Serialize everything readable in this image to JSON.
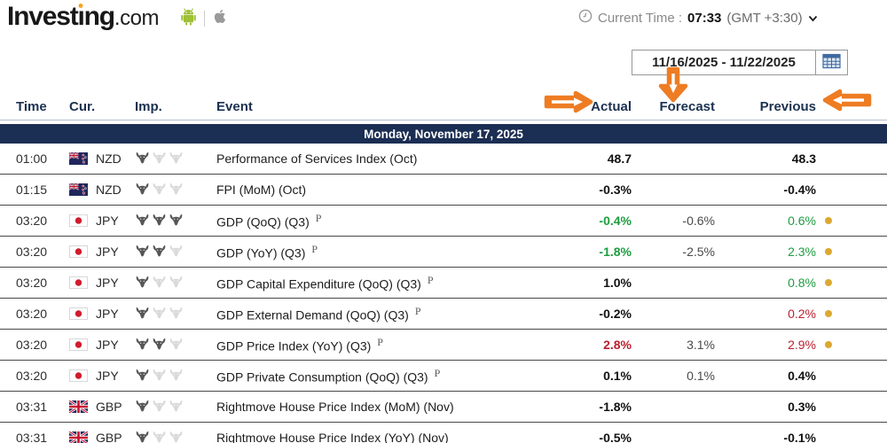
{
  "header": {
    "logo": {
      "part1": "Invest",
      "part2": "ı",
      "part3": "ng",
      "suffix": ".com"
    },
    "current_time": {
      "label": "Current Time :",
      "time": "07:33",
      "timezone": "(GMT +3:30)"
    },
    "date_range": "11/16/2025 - 11/22/2025"
  },
  "icons": {
    "android": "android-icon",
    "apple": "apple-icon",
    "clock": "clock-icon",
    "chevron": "chevron-down-icon",
    "calendar": "calendar-icon",
    "bull": "importance-bull-icon",
    "revised": "revised-dot",
    "arrows": [
      "annotation-arrow-actual",
      "annotation-arrow-forecast",
      "annotation-arrow-previous"
    ]
  },
  "colors": {
    "accent_orange": "#ee7c23",
    "navy_bar": "#1b2e53",
    "green": "#1e9c3f",
    "red": "#bb1f2e",
    "gold_dot": "#dca832"
  },
  "table": {
    "columns": {
      "time": "Time",
      "cur": "Cur.",
      "imp": "Imp.",
      "event": "Event",
      "actual": "Actual",
      "forecast": "Forecast",
      "previous": "Previous"
    },
    "date_header": "Monday, November 17, 2025",
    "prelim_mark": "P",
    "rows": [
      {
        "time": "01:00",
        "currency": "NZD",
        "flag": "nzd",
        "importance": 1,
        "event": "Performance of Services Index (Oct)",
        "prelim": false,
        "actual": "48.7",
        "actual_color": "black",
        "forecast": "",
        "previous": "48.3",
        "previous_color": "black",
        "revised_dot": false
      },
      {
        "time": "01:15",
        "currency": "NZD",
        "flag": "nzd",
        "importance": 1,
        "event": "FPI (MoM) (Oct)",
        "prelim": false,
        "actual": "-0.3%",
        "actual_color": "black",
        "forecast": "",
        "previous": "-0.4%",
        "previous_color": "black",
        "revised_dot": false
      },
      {
        "time": "03:20",
        "currency": "JPY",
        "flag": "jpy",
        "importance": 3,
        "event": "GDP (QoQ) (Q3)",
        "prelim": true,
        "actual": "-0.4%",
        "actual_color": "green",
        "forecast": "-0.6%",
        "previous": "0.6%",
        "previous_color": "green",
        "revised_dot": true
      },
      {
        "time": "03:20",
        "currency": "JPY",
        "flag": "jpy",
        "importance": 2,
        "event": "GDP (YoY) (Q3)",
        "prelim": true,
        "actual": "-1.8%",
        "actual_color": "green",
        "forecast": "-2.5%",
        "previous": "2.3%",
        "previous_color": "green",
        "revised_dot": true
      },
      {
        "time": "03:20",
        "currency": "JPY",
        "flag": "jpy",
        "importance": 1,
        "event": "GDP Capital Expenditure (QoQ) (Q3)",
        "prelim": true,
        "actual": "1.0%",
        "actual_color": "black",
        "forecast": "",
        "previous": "0.8%",
        "previous_color": "green",
        "revised_dot": true
      },
      {
        "time": "03:20",
        "currency": "JPY",
        "flag": "jpy",
        "importance": 1,
        "event": "GDP External Demand (QoQ) (Q3)",
        "prelim": true,
        "actual": "-0.2%",
        "actual_color": "black",
        "forecast": "",
        "previous": "0.2%",
        "previous_color": "red",
        "revised_dot": true
      },
      {
        "time": "03:20",
        "currency": "JPY",
        "flag": "jpy",
        "importance": 2,
        "event": "GDP Price Index (YoY) (Q3)",
        "prelim": true,
        "actual": "2.8%",
        "actual_color": "red",
        "forecast": "3.1%",
        "previous": "2.9%",
        "previous_color": "red",
        "revised_dot": true
      },
      {
        "time": "03:20",
        "currency": "JPY",
        "flag": "jpy",
        "importance": 1,
        "event": "GDP Private Consumption (QoQ) (Q3)",
        "prelim": true,
        "actual": "0.1%",
        "actual_color": "black",
        "forecast": "0.1%",
        "previous": "0.4%",
        "previous_color": "black",
        "revised_dot": false
      },
      {
        "time": "03:31",
        "currency": "GBP",
        "flag": "gbp",
        "importance": 1,
        "event": "Rightmove House Price Index (MoM) (Nov)",
        "prelim": false,
        "actual": "-1.8%",
        "actual_color": "black",
        "forecast": "",
        "previous": "0.3%",
        "previous_color": "black",
        "revised_dot": false
      },
      {
        "time": "03:31",
        "currency": "GBP",
        "flag": "gbp",
        "importance": 1,
        "event": "Rightmove House Price Index (YoY) (Nov)",
        "prelim": false,
        "actual": "-0.5%",
        "actual_color": "black",
        "forecast": "",
        "previous": "-0.1%",
        "previous_color": "black",
        "revised_dot": false
      }
    ]
  }
}
